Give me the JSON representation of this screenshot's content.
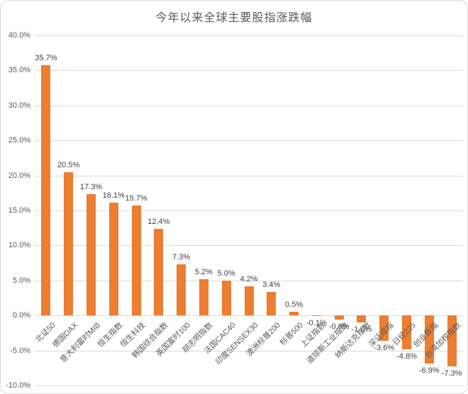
{
  "chart_data": {
    "type": "bar",
    "title": "今年以来全球主要股指涨跌幅",
    "categories": [
      "北证50",
      "德国DAX",
      "意大利富时MIB",
      "恒生指数",
      "恒生科技",
      "韩国综合指数",
      "英国富时100",
      "胡志明指数",
      "法国CAC40",
      "印度SENSEX30",
      "澳洲标普200",
      "标普500",
      "上证指数",
      "道琼斯工业指数",
      "纳斯达克指数",
      "深证成指",
      "日经225",
      "创业板指",
      "台湾加权指数"
    ],
    "values": [
      35.7,
      20.5,
      17.3,
      16.1,
      15.7,
      12.4,
      7.3,
      5.2,
      5.0,
      4.2,
      3.4,
      0.5,
      -0.1,
      -0.6,
      -1.0,
      -3.6,
      -4.8,
      -6.9,
      -7.3
    ],
    "value_labels": [
      "35.7%",
      "20.5%",
      "17.3%",
      "16.1%",
      "15.7%",
      "12.4%",
      "7.3%",
      "5.2%",
      "5.0%",
      "4.2%",
      "3.4%",
      "0.5%",
      "-0.1%",
      "-0.6%",
      "-1.0%",
      "-3.6%",
      "-4.8%",
      "-6.9%",
      "-7.3%"
    ],
    "xlabel": "",
    "ylabel": "",
    "ylim": [
      -10,
      40
    ],
    "ytick_step": 5,
    "ytick_labels": [
      "40.0%",
      "35.0%",
      "30.0%",
      "25.0%",
      "20.0%",
      "15.0%",
      "10.0%",
      "5.0%",
      "0.0%",
      "-5.0%",
      "-10.0%"
    ],
    "grid": true,
    "legend": false,
    "bar_color": "#ED7D31"
  },
  "colors": {
    "bar": "#ED7D31",
    "gridline": "#D9D9D9",
    "title_text": "#595959",
    "axis_text": "#595959",
    "value_label_text": "#404040",
    "background": "#FFFFFF",
    "card_border": "#DADADA"
  }
}
